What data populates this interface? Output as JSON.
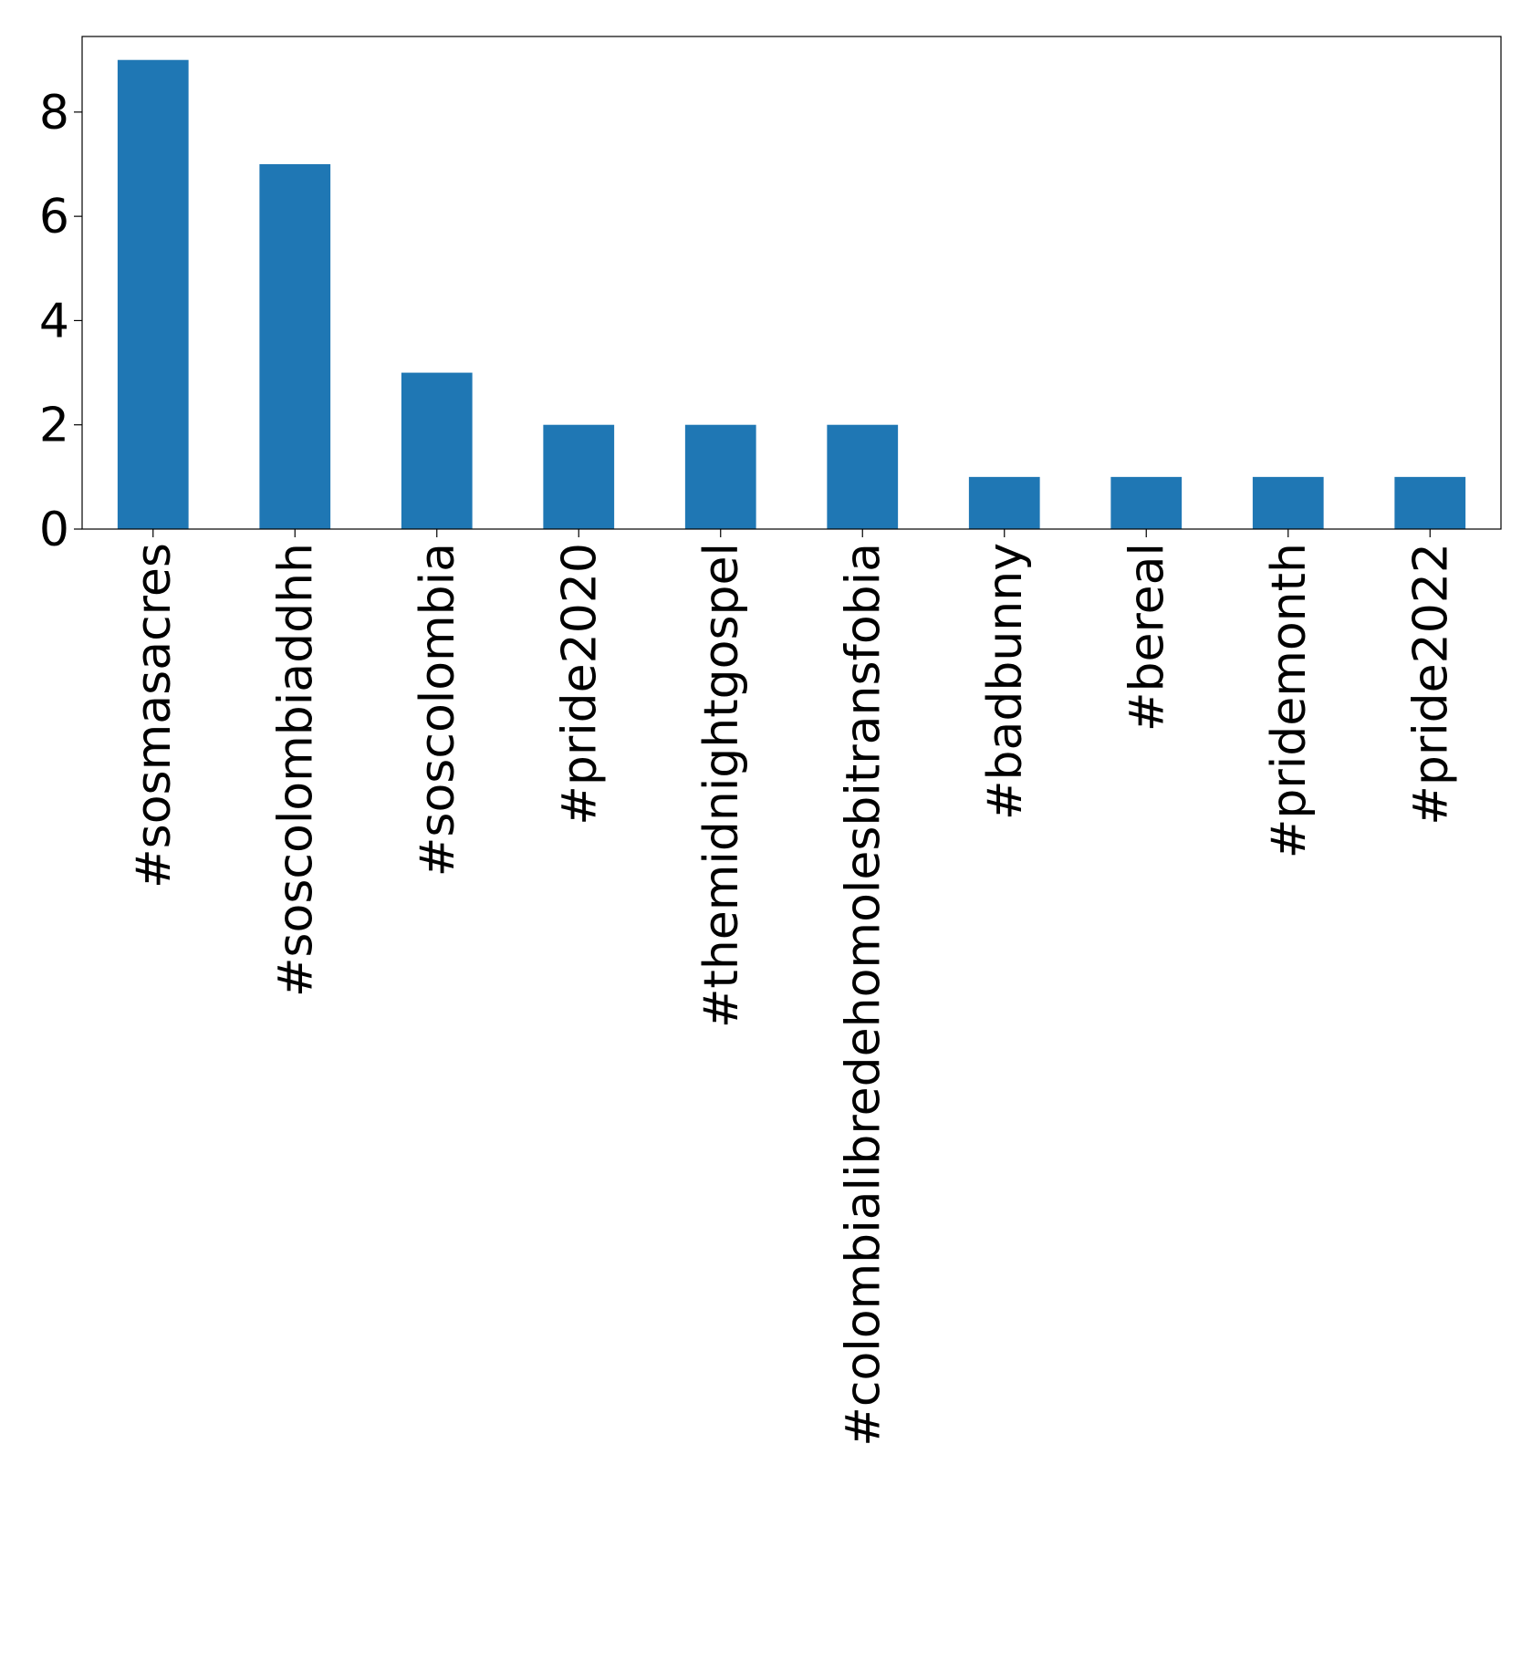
{
  "chart_data": {
    "type": "bar",
    "title": "",
    "xlabel": "",
    "ylabel": "",
    "categories": [
      "#sosmasacres",
      "#soscolombiaddhh",
      "#soscolombia",
      "#pride2020",
      "#themidnightgospel",
      "#colombialibredehomolesbitransfobia",
      "#badbunny",
      "#bereal",
      "#pridemonth",
      "#pride2022"
    ],
    "values": [
      9,
      7,
      3,
      2,
      2,
      2,
      1,
      1,
      1,
      1
    ],
    "ylim": [
      0,
      9.45
    ],
    "yticks": [
      0,
      2,
      4,
      6,
      8
    ],
    "grid": false,
    "bar_color": "#1f77b4"
  }
}
